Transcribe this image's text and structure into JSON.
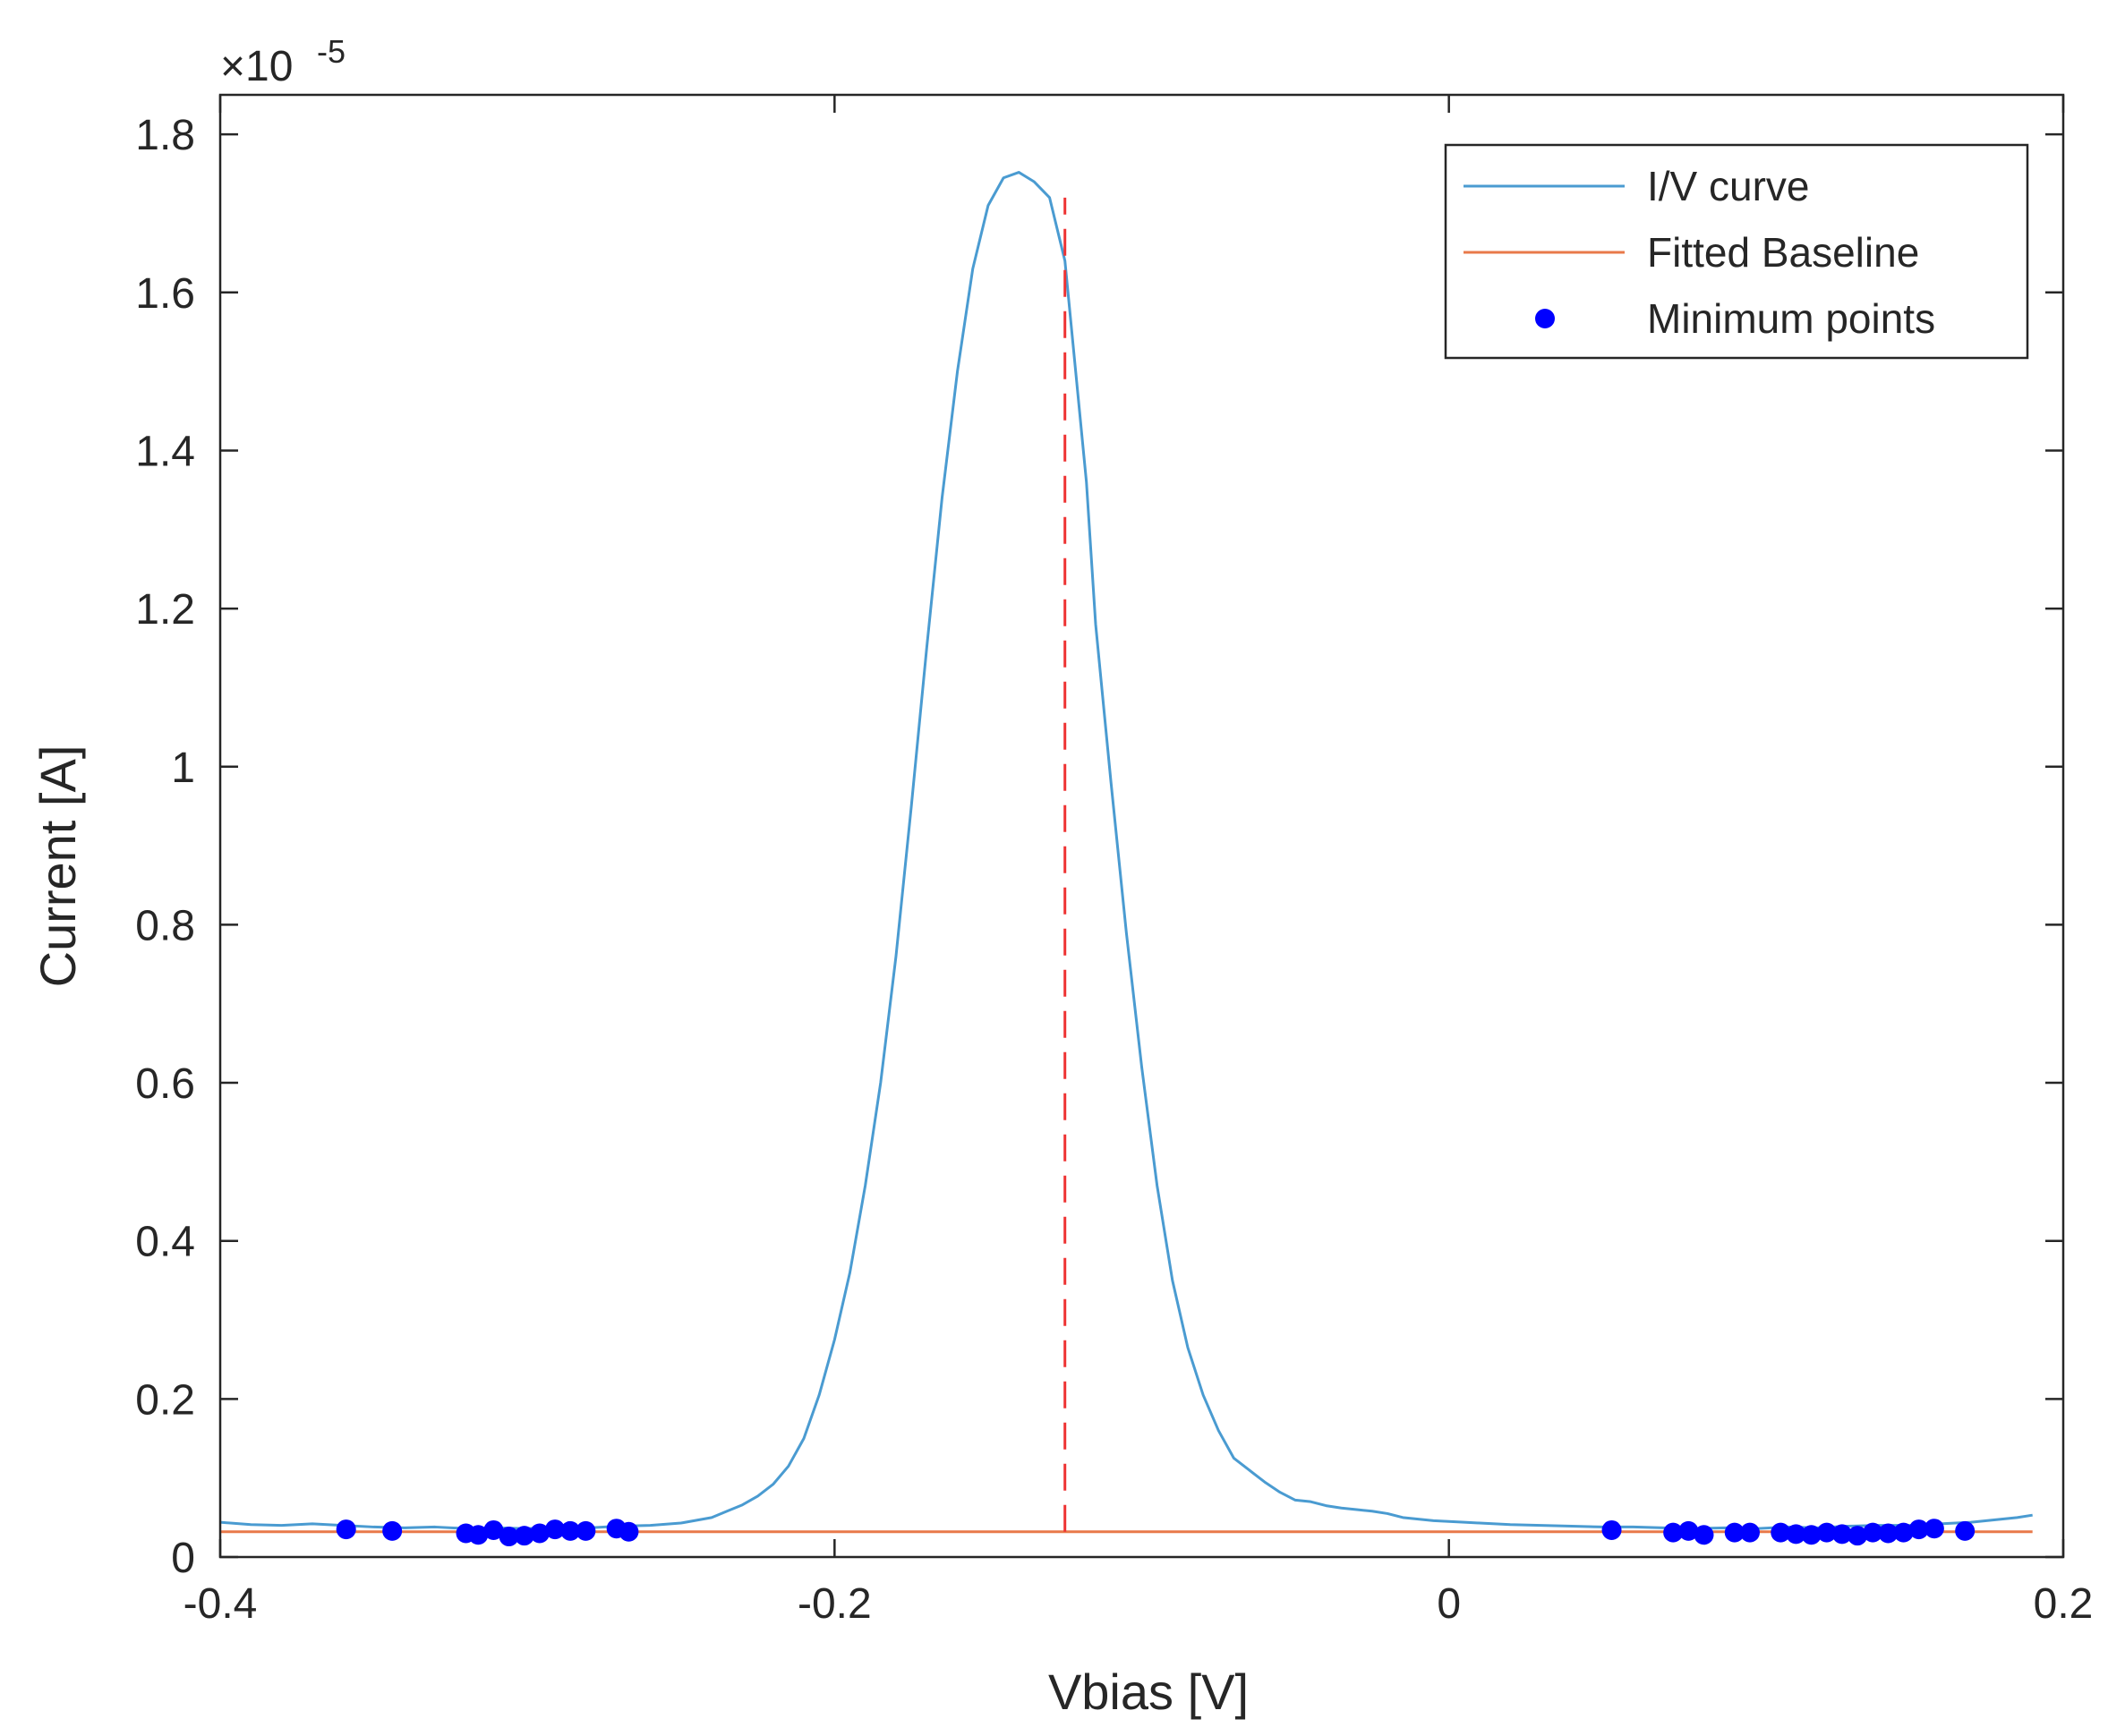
{
  "chart_data": {
    "type": "line",
    "xlabel": "Vbias [V]",
    "ylabel": "Current [A]",
    "y_multiplier_label": "×10",
    "y_multiplier_exponent": "-5",
    "xlim": [
      -0.4,
      0.2
    ],
    "ylim": [
      0,
      1.85
    ],
    "x_ticks": [
      -0.4,
      -0.2,
      0,
      0.2
    ],
    "x_tick_labels": [
      "-0.4",
      "-0.2",
      "0",
      "0.2"
    ],
    "y_ticks": [
      0,
      0.2,
      0.4,
      0.6,
      0.8,
      1.0,
      1.2,
      1.4,
      1.6,
      1.8
    ],
    "y_tick_labels": [
      "0",
      "0.2",
      "0.4",
      "0.6",
      "0.8",
      "1",
      "1.2",
      "1.4",
      "1.6",
      "1.8"
    ],
    "grid": false,
    "legend_position": "top-right",
    "colors": {
      "iv_curve": "#4a9bd1",
      "baseline": "#e8794a",
      "minimum_points": "#0000ff",
      "peak_marker": "#ee3333",
      "axes": "#262626"
    },
    "series": [
      {
        "name": "I/V curve",
        "style": "line",
        "x": [
          -0.4,
          -0.39,
          -0.38,
          -0.37,
          -0.36,
          -0.35,
          -0.34,
          -0.33,
          -0.32,
          -0.31,
          -0.3,
          -0.29,
          -0.28,
          -0.27,
          -0.26,
          -0.25,
          -0.24,
          -0.235,
          -0.23,
          -0.225,
          -0.22,
          -0.215,
          -0.21,
          -0.205,
          -0.2,
          -0.195,
          -0.19,
          -0.185,
          -0.18,
          -0.175,
          -0.17,
          -0.165,
          -0.16,
          -0.155,
          -0.15,
          -0.145,
          -0.14,
          -0.135,
          -0.13,
          -0.125,
          -0.122,
          -0.118,
          -0.115,
          -0.11,
          -0.105,
          -0.1,
          -0.095,
          -0.09,
          -0.085,
          -0.08,
          -0.075,
          -0.07,
          -0.065,
          -0.06,
          -0.055,
          -0.05,
          -0.045,
          -0.04,
          -0.035,
          -0.03,
          -0.025,
          -0.02,
          -0.015,
          -0.01,
          -0.005,
          0.0,
          0.005,
          0.01,
          0.02,
          0.03,
          0.04,
          0.05,
          0.06,
          0.07,
          0.08,
          0.09,
          0.1,
          0.11,
          0.12,
          0.13,
          0.14,
          0.15,
          0.16,
          0.17,
          0.18,
          0.185,
          0.19
        ],
        "y": [
          0.044,
          0.041,
          0.04,
          0.042,
          0.04,
          0.038,
          0.037,
          0.038,
          0.036,
          0.037,
          0.036,
          0.038,
          0.037,
          0.039,
          0.04,
          0.043,
          0.05,
          0.058,
          0.066,
          0.077,
          0.092,
          0.115,
          0.15,
          0.205,
          0.275,
          0.36,
          0.47,
          0.6,
          0.76,
          0.95,
          1.15,
          1.34,
          1.5,
          1.63,
          1.71,
          1.745,
          1.752,
          1.74,
          1.72,
          1.64,
          1.52,
          1.36,
          1.18,
          0.98,
          0.79,
          0.62,
          0.47,
          0.35,
          0.265,
          0.205,
          0.16,
          0.125,
          0.11,
          0.095,
          0.082,
          0.072,
          0.07,
          0.065,
          0.062,
          0.06,
          0.058,
          0.055,
          0.05,
          0.048,
          0.046,
          0.045,
          0.044,
          0.043,
          0.041,
          0.04,
          0.039,
          0.038,
          0.038,
          0.037,
          0.036,
          0.037,
          0.036,
          0.038,
          0.037,
          0.039,
          0.04,
          0.04,
          0.042,
          0.044,
          0.048,
          0.05,
          0.053
        ]
      },
      {
        "name": "Fitted Baseline",
        "style": "line",
        "x": [
          -0.4,
          0.19
        ],
        "y": [
          0.032,
          0.032
        ]
      },
      {
        "name": "Minimum points",
        "style": "markers",
        "x": [
          -0.359,
          -0.344,
          -0.32,
          -0.316,
          -0.311,
          -0.306,
          -0.301,
          -0.296,
          -0.291,
          -0.286,
          -0.281,
          -0.271,
          -0.267,
          0.053,
          0.073,
          0.078,
          0.083,
          0.093,
          0.098,
          0.108,
          0.113,
          0.118,
          0.123,
          0.128,
          0.133,
          0.138,
          0.143,
          0.148,
          0.153,
          0.158,
          0.168
        ],
        "y": [
          0.035,
          0.033,
          0.03,
          0.028,
          0.034,
          0.026,
          0.027,
          0.03,
          0.035,
          0.033,
          0.033,
          0.036,
          0.032,
          0.034,
          0.031,
          0.033,
          0.028,
          0.031,
          0.031,
          0.031,
          0.029,
          0.028,
          0.031,
          0.029,
          0.027,
          0.031,
          0.03,
          0.031,
          0.035,
          0.036,
          0.033
        ]
      }
    ],
    "annotations": [
      {
        "type": "vertical-dashed-line",
        "x": -0.125,
        "y_from": 0.032,
        "y_to": 1.72
      }
    ]
  }
}
